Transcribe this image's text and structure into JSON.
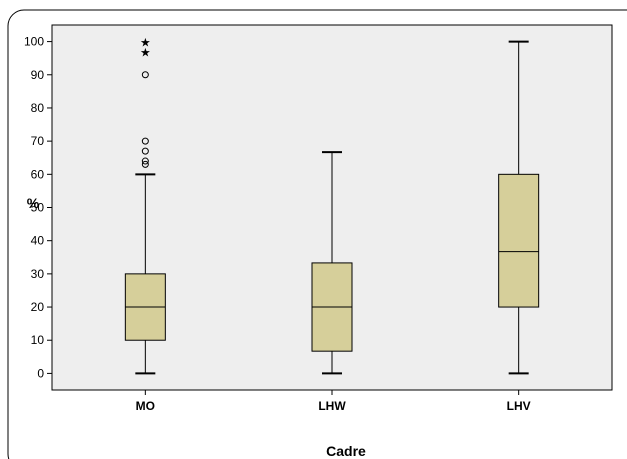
{
  "chart_data": {
    "type": "boxplot",
    "title": "",
    "xlabel": "Cadre",
    "ylabel": "%",
    "ylim": [
      -5,
      105
    ],
    "yticks": [
      0,
      10,
      20,
      30,
      40,
      50,
      60,
      70,
      80,
      90,
      100
    ],
    "grid": false,
    "categories": [
      "MO",
      "LHW",
      "LHV"
    ],
    "boxes": [
      {
        "category": "MO",
        "whisker_low": 0,
        "q1": 10,
        "median": 20,
        "q3": 30,
        "whisker_high": 60,
        "outliers": [
          63,
          64,
          67,
          70,
          90
        ],
        "extremes": [
          97,
          100
        ]
      },
      {
        "category": "LHW",
        "whisker_low": 0,
        "q1": 6.7,
        "median": 20,
        "q3": 33.3,
        "whisker_high": 66.7,
        "outliers": [],
        "extremes": []
      },
      {
        "category": "LHV",
        "whisker_low": 0,
        "q1": 20,
        "median": 36.7,
        "q3": 60,
        "whisker_high": 100,
        "outliers": [],
        "extremes": []
      }
    ],
    "colors": {
      "box_fill": "#d6cf9a",
      "plot_bg": "#eeeeee",
      "stroke": "#000000"
    }
  }
}
